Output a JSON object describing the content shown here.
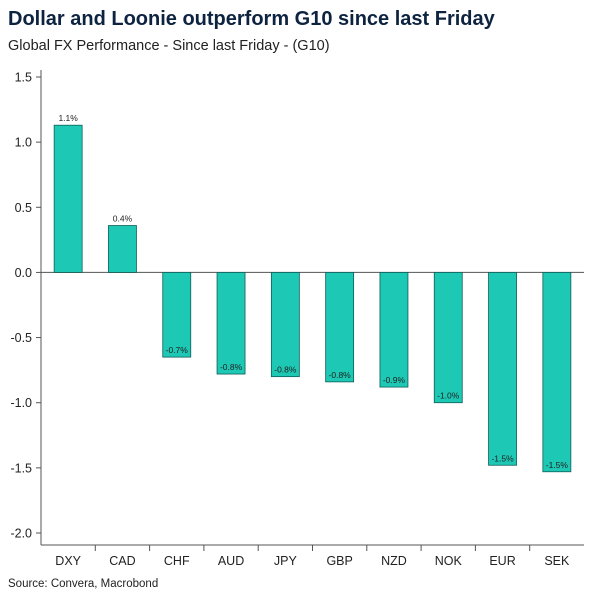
{
  "title": "Dollar and Loonie outperform G10 since last Friday",
  "subtitle": "Global FX Performance - Since last Friday - (G10)",
  "source": "Source: Convera, Macrobond",
  "colors": {
    "bar": "#1dc8b4",
    "bar_edge": "#0e5e58",
    "axis": "#555555",
    "text": "#222222"
  },
  "chart_data": {
    "type": "bar",
    "categories": [
      "DXY",
      "CAD",
      "CHF",
      "AUD",
      "JPY",
      "GBP",
      "NZD",
      "NOK",
      "EUR",
      "SEK"
    ],
    "values": [
      1.13,
      0.36,
      -0.65,
      -0.78,
      -0.8,
      -0.84,
      -0.88,
      -1.0,
      -1.48,
      -1.53
    ],
    "data_labels": [
      "1.1%",
      "0.4%",
      "-0.7%",
      "-0.8%",
      "-0.8%",
      "-0.8%",
      "-0.9%",
      "-1.0%",
      "-1.5%",
      "-1.5%"
    ],
    "ylim": [
      -2.0,
      1.5
    ],
    "yticks": [
      1.5,
      1.0,
      0.5,
      0.0,
      -0.5,
      -1.0,
      -1.5,
      -2.0
    ],
    "ytick_labels": [
      "1.5",
      "1.0",
      "0.5",
      "0.0",
      "-0.5",
      "-1.0",
      "-1.5",
      "-2.0"
    ],
    "grid": false,
    "legend": "none"
  }
}
